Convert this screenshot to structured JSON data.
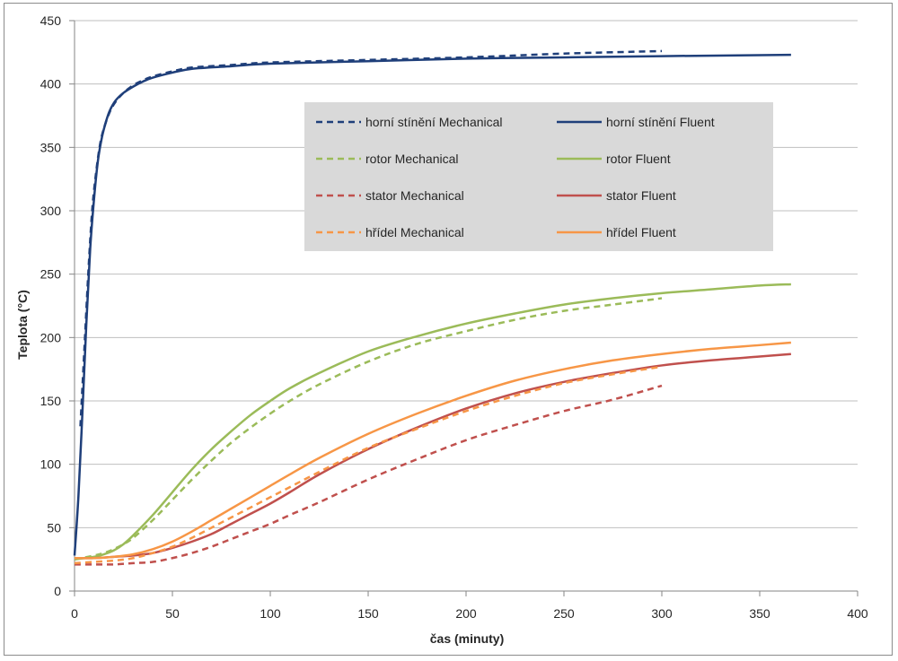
{
  "chart_data": {
    "type": "line",
    "title": "",
    "xlabel": "čas (minuty)",
    "ylabel": "Teplota (°C)",
    "xlim": [
      0,
      400
    ],
    "ylim": [
      0,
      450
    ],
    "x_ticks": [
      0,
      50,
      100,
      150,
      200,
      250,
      300,
      350,
      400
    ],
    "y_ticks": [
      0,
      50,
      100,
      150,
      200,
      250,
      300,
      350,
      400,
      450
    ],
    "grid": "horizontal",
    "legend_position": "top-center inside plot",
    "series": [
      {
        "name": "horní stínění Mechanical",
        "color": "#1f3f7a",
        "dash": "dashed",
        "x": [
          3,
          5,
          7,
          9,
          11,
          13,
          15,
          18,
          21,
          25,
          30,
          35,
          40,
          50,
          60,
          80,
          100,
          150,
          200,
          250,
          300
        ],
        "y": [
          130,
          190,
          250,
          300,
          330,
          352,
          365,
          378,
          386,
          393,
          399,
          403,
          406,
          410,
          413,
          415,
          417,
          419,
          421,
          424,
          426
        ]
      },
      {
        "name": "horní stínění Fluent",
        "color": "#1f3f7a",
        "dash": "solid",
        "x": [
          0,
          2,
          4,
          6,
          8,
          10,
          12,
          14,
          16,
          18,
          21,
          25,
          30,
          35,
          40,
          50,
          60,
          80,
          100,
          150,
          200,
          250,
          300,
          366
        ],
        "y": [
          28,
          75,
          140,
          210,
          270,
          310,
          340,
          358,
          370,
          379,
          387,
          393,
          398,
          402,
          405,
          409,
          412,
          414,
          416,
          418,
          420,
          421,
          422,
          423
        ]
      },
      {
        "name": "rotor Mechanical",
        "color": "#9bbb59",
        "dash": "dashed",
        "x": [
          0,
          10,
          15,
          20,
          25,
          30,
          40,
          50,
          60,
          70,
          80,
          90,
          100,
          110,
          125,
          150,
          175,
          200,
          225,
          250,
          275,
          300
        ],
        "y": [
          25,
          28,
          30,
          33,
          37,
          42,
          56,
          72,
          88,
          103,
          117,
          129,
          140,
          150,
          163,
          181,
          195,
          205,
          214,
          221,
          226,
          231
        ]
      },
      {
        "name": "rotor Fluent",
        "color": "#9bbb59",
        "dash": "solid",
        "x": [
          0,
          10,
          15,
          20,
          25,
          30,
          40,
          50,
          60,
          70,
          80,
          90,
          100,
          110,
          125,
          150,
          175,
          200,
          225,
          250,
          275,
          300,
          325,
          350,
          366
        ],
        "y": [
          25,
          27,
          29,
          32,
          37,
          44,
          60,
          78,
          96,
          112,
          126,
          139,
          150,
          160,
          172,
          189,
          201,
          211,
          219,
          226,
          231,
          235,
          238,
          241,
          242
        ]
      },
      {
        "name": "stator Mechanical",
        "color": "#c0504d",
        "dash": "dashed",
        "x": [
          0,
          10,
          20,
          30,
          40,
          50,
          60,
          70,
          80,
          90,
          100,
          110,
          125,
          150,
          175,
          200,
          225,
          250,
          275,
          300
        ],
        "y": [
          21,
          21,
          21,
          22,
          23,
          26,
          30,
          35,
          41,
          47,
          53,
          60,
          70,
          88,
          104,
          119,
          131,
          142,
          151,
          162
        ]
      },
      {
        "name": "stator Fluent",
        "color": "#c0504d",
        "dash": "solid",
        "x": [
          0,
          10,
          20,
          30,
          40,
          50,
          60,
          70,
          80,
          90,
          100,
          110,
          125,
          150,
          175,
          200,
          225,
          250,
          275,
          300,
          325,
          350,
          366
        ],
        "y": [
          26,
          26,
          27,
          28,
          30,
          34,
          39,
          45,
          53,
          61,
          69,
          78,
          92,
          112,
          129,
          144,
          156,
          165,
          172,
          178,
          182,
          185,
          187
        ]
      },
      {
        "name": "hřídel Mechanical",
        "color": "#f79646",
        "dash": "dashed",
        "x": [
          0,
          10,
          20,
          30,
          40,
          50,
          60,
          70,
          80,
          90,
          100,
          110,
          125,
          150,
          175,
          200,
          225,
          250,
          275,
          300
        ],
        "y": [
          22,
          23,
          24,
          26,
          30,
          35,
          42,
          50,
          58,
          66,
          74,
          82,
          94,
          113,
          128,
          142,
          154,
          164,
          171,
          177
        ]
      },
      {
        "name": "hřídel Fluent",
        "color": "#f79646",
        "dash": "solid",
        "x": [
          0,
          10,
          20,
          30,
          40,
          50,
          60,
          70,
          80,
          90,
          100,
          110,
          125,
          150,
          175,
          200,
          225,
          250,
          275,
          300,
          325,
          350,
          366
        ],
        "y": [
          26,
          26,
          27,
          29,
          33,
          39,
          47,
          56,
          65,
          74,
          83,
          92,
          105,
          124,
          140,
          154,
          166,
          175,
          182,
          187,
          191,
          194,
          196
        ]
      }
    ]
  },
  "colors": {
    "gridline": "#bfbfbf",
    "axis": "#868686",
    "legend_background": "#d9d9d9"
  }
}
